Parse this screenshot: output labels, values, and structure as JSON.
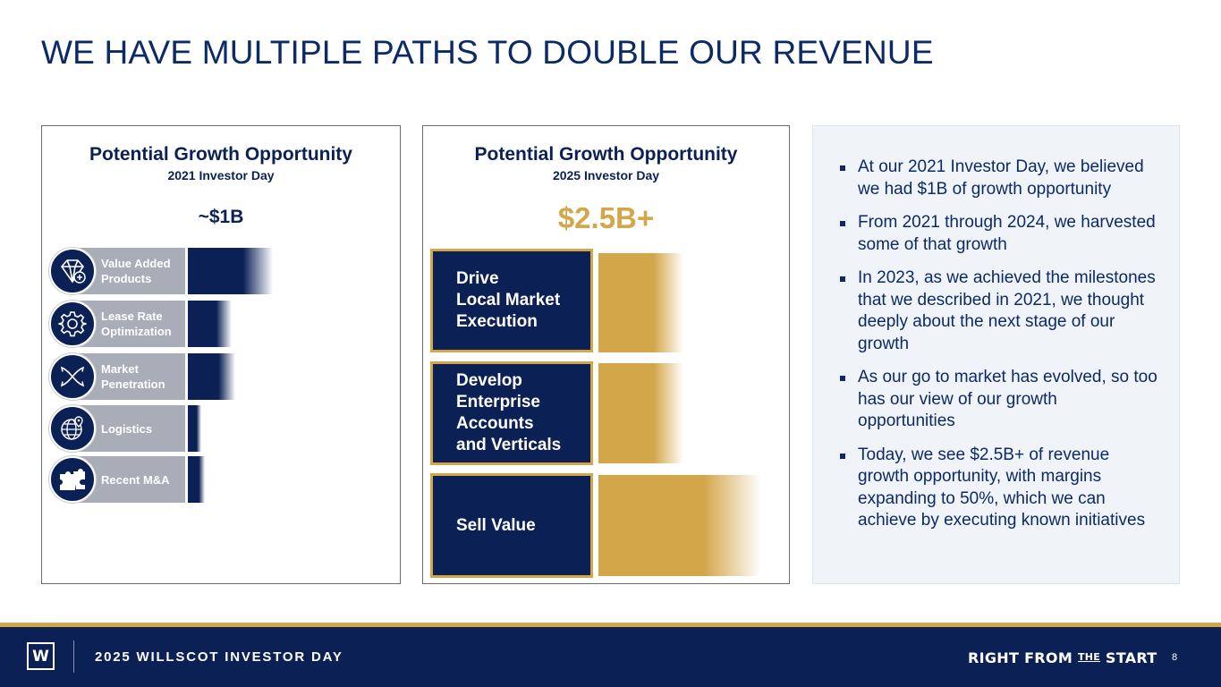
{
  "title": "WE HAVE MULTIPLE PATHS TO DOUBLE OUR REVENUE",
  "left_panel": {
    "title": "Potential Growth Opportunity",
    "subtitle": "2021 Investor Day",
    "value": "~$1B",
    "rows": [
      {
        "label": "Value Added Products",
        "icon": "diamond-icon",
        "bar_fraction": 0.25
      },
      {
        "label": "Lease Rate Optimization",
        "icon": "gear-icon",
        "bar_fraction": 0.13
      },
      {
        "label": "Market Penetration",
        "icon": "arrows-cross-icon",
        "bar_fraction": 0.14
      },
      {
        "label": "Logistics",
        "icon": "globe-pin-icon",
        "bar_fraction": 0.04
      },
      {
        "label": "Recent M&A",
        "icon": "puzzle-icon",
        "bar_fraction": 0.05
      }
    ]
  },
  "mid_panel": {
    "title": "Potential Growth Opportunity",
    "subtitle": "2025 Investor Day",
    "value": "$2.5B+",
    "rows": [
      {
        "label": "Drive\nLocal Market\nExecution",
        "bar_fraction": 0.25
      },
      {
        "label": "Develop\nEnterprise\nAccounts\nand Verticals",
        "bar_fraction": 0.25
      },
      {
        "label": "Sell Value",
        "bar_fraction": 0.48
      }
    ]
  },
  "bullets": [
    "At our 2021 Investor Day, we believed we had $1B of growth opportunity",
    "From 2021 through 2024, we harvested some of that growth",
    "In 2023, as we achieved the milestones that we described in 2021, we thought deeply about the next stage of our growth",
    "As our go to market has evolved, so too has our view of our growth opportunities",
    "Today, we see $2.5B+ of revenue growth opportunity, with margins expanding to 50%, which we can achieve by executing known initiatives"
  ],
  "footer": {
    "logo": "W",
    "event": "2025 WILLSCOT INVESTOR DAY",
    "tagline_pre": "RIGHT FROM ",
    "tagline_the": "THE",
    "tagline_post": " START",
    "page": "8"
  },
  "colors": {
    "navy": "#0b2156",
    "gold": "#d4a64a",
    "grey": "#a8adb8"
  }
}
